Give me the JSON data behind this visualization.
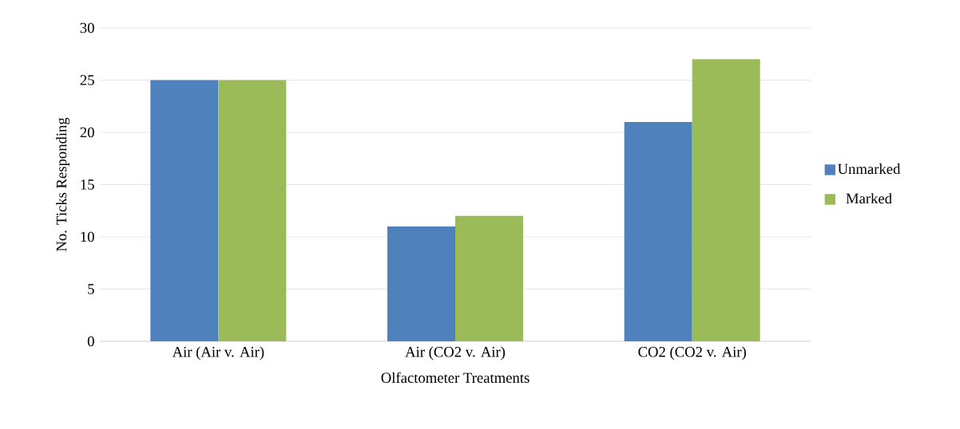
{
  "chart_data": {
    "type": "bar",
    "xlabel": "Olfactometer Treatments",
    "ylabel": "No. Ticks Responding",
    "categories": [
      "Air (Air v. Air)",
      "Air (CO2 v. Air)",
      "CO2 (CO2 v.  Air)"
    ],
    "series": [
      {
        "name": "Unmarked",
        "color": "#4f81bd",
        "values": [
          25,
          11,
          21
        ]
      },
      {
        "name": "Marked",
        "color": "#9bbb59",
        "values": [
          25,
          12,
          27
        ]
      }
    ],
    "ylim": [
      0,
      30
    ],
    "yticks": [
      0,
      5,
      10,
      15,
      20,
      25,
      30
    ],
    "grid": "y",
    "legend": "right"
  }
}
